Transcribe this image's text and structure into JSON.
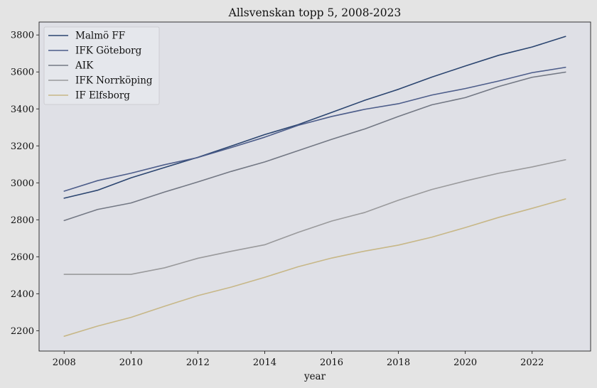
{
  "chart_data": {
    "type": "line",
    "title": "Allsvenskan topp 5, 2008-2023",
    "xlabel": "year",
    "ylabel": "",
    "x": [
      2008,
      2009,
      2010,
      2011,
      2012,
      2013,
      2014,
      2015,
      2016,
      2017,
      2018,
      2019,
      2020,
      2021,
      2022,
      2023
    ],
    "xlim": [
      2007.25,
      2023.75
    ],
    "ylim": [
      2090,
      3870
    ],
    "xticks": [
      2008,
      2010,
      2012,
      2014,
      2016,
      2018,
      2020,
      2022
    ],
    "yticks": [
      2200,
      2400,
      2600,
      2800,
      3000,
      3200,
      3400,
      3600,
      3800
    ],
    "grid": false,
    "legend_position": "upper-left",
    "background_color": "#dfe0e6",
    "figure_color": "#e4e4e4",
    "series": [
      {
        "name": "Malmö FF",
        "color": "#2b4570",
        "values": [
          2917,
          2960,
          3027,
          3083,
          3138,
          3199,
          3261,
          3315,
          3381,
          3447,
          3506,
          3572,
          3632,
          3690,
          3735,
          3792
        ]
      },
      {
        "name": "IFK Göteborg",
        "color": "#4d5d8a",
        "values": [
          2955,
          3012,
          3052,
          3098,
          3137,
          3191,
          3247,
          3311,
          3359,
          3398,
          3428,
          3475,
          3510,
          3551,
          3596,
          3625
        ]
      },
      {
        "name": "AIK",
        "color": "#737884",
        "values": [
          2796,
          2856,
          2891,
          2950,
          3005,
          3062,
          3113,
          3174,
          3235,
          3292,
          3359,
          3422,
          3461,
          3521,
          3571,
          3599
        ]
      },
      {
        "name": "IFK Norrköping",
        "color": "#9a9a9c",
        "values": [
          2505,
          2505,
          2505,
          2540,
          2592,
          2630,
          2665,
          2732,
          2793,
          2840,
          2906,
          2964,
          3010,
          3052,
          3086,
          3125
        ]
      },
      {
        "name": "IF Elfsborg",
        "color": "#c7b787",
        "values": [
          2170,
          2225,
          2272,
          2332,
          2390,
          2436,
          2489,
          2546,
          2593,
          2631,
          2663,
          2706,
          2758,
          2813,
          2862,
          2913
        ]
      }
    ]
  }
}
